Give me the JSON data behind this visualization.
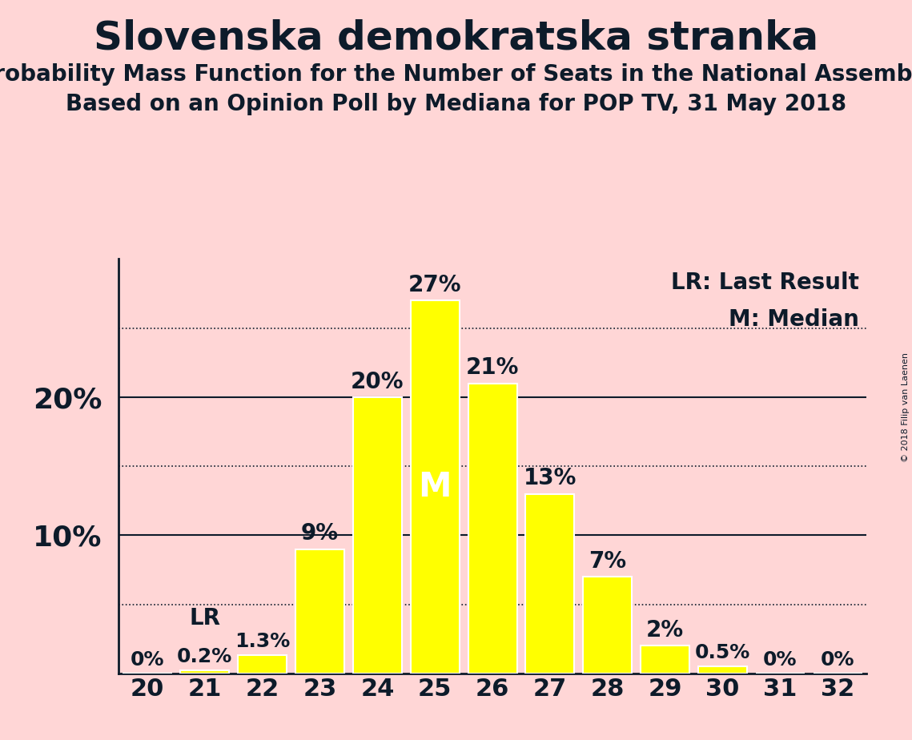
{
  "title": "Slovenska demokratska stranka",
  "subtitle1": "Probability Mass Function for the Number of Seats in the National Assembly",
  "subtitle2": "Based on an Opinion Poll by Mediana for POP TV, 31 May 2018",
  "copyright": "© 2018 Filip van Laenen",
  "seats": [
    20,
    21,
    22,
    23,
    24,
    25,
    26,
    27,
    28,
    29,
    30,
    31,
    32
  ],
  "probabilities": [
    0.0,
    0.2,
    1.3,
    9.0,
    20.0,
    27.0,
    21.0,
    13.0,
    7.0,
    2.0,
    0.5,
    0.0,
    0.0
  ],
  "bar_color": "#FFFF00",
  "bar_edge_color": "#FFFFFF",
  "background_color": "#FFD6D6",
  "text_color": "#0D1B2A",
  "lr_seat": 21,
  "median_seat": 25,
  "legend_lr": "LR: Last Result",
  "legend_m": "M: Median",
  "solid_gridlines": [
    10,
    20
  ],
  "dotted_gridlines": [
    5,
    15,
    25
  ],
  "ylim": [
    0,
    30
  ],
  "yticks": [
    10,
    20
  ],
  "title_fontsize": 36,
  "subtitle_fontsize": 20,
  "label_fontsize": 18,
  "tick_fontsize": 22,
  "axis_color": "#0D1B2A"
}
